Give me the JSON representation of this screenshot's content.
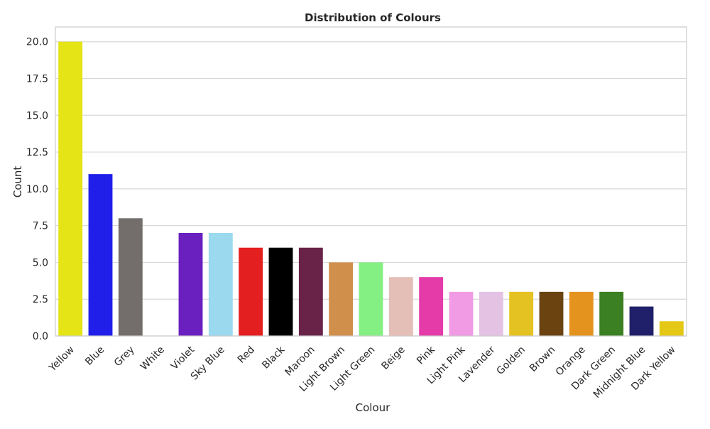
{
  "chart_data": {
    "type": "bar",
    "title": "Distribution of Colours",
    "xlabel": "Colour",
    "ylabel": "Count",
    "ylim": [
      0,
      21
    ],
    "yticks": [
      "0.0",
      "2.5",
      "5.0",
      "7.5",
      "10.0",
      "12.5",
      "15.0",
      "17.5",
      "20.0"
    ],
    "grid": true,
    "categories": [
      "Yellow",
      "Blue",
      "Grey",
      "White",
      "Violet",
      "Sky Blue",
      "Red",
      "Black",
      "Maroon",
      "Light Brown",
      "Light Green",
      "Beige",
      "Pink",
      "Light Pink",
      "Lavender",
      "Golden",
      "Brown",
      "Orange",
      "Dark Green",
      "Midnight Blue",
      "Dark Yellow"
    ],
    "values": [
      20,
      11,
      8,
      0,
      7,
      7,
      6,
      6,
      6,
      5,
      5,
      4,
      4,
      3,
      3,
      3,
      3,
      3,
      3,
      2,
      1
    ],
    "colors": [
      "#e4e417",
      "#1f1fe9",
      "#736e6b",
      "#ffffff",
      "#6a1fbf",
      "#9bd9ee",
      "#e41f1f",
      "#000000",
      "#6a2348",
      "#d18f4c",
      "#84f084",
      "#e4bfb7",
      "#e43ba8",
      "#f09be4",
      "#e4c2e4",
      "#e4c222",
      "#6a4311",
      "#e4931f",
      "#3b8022",
      "#1f1f6a",
      "#e4c815"
    ]
  }
}
